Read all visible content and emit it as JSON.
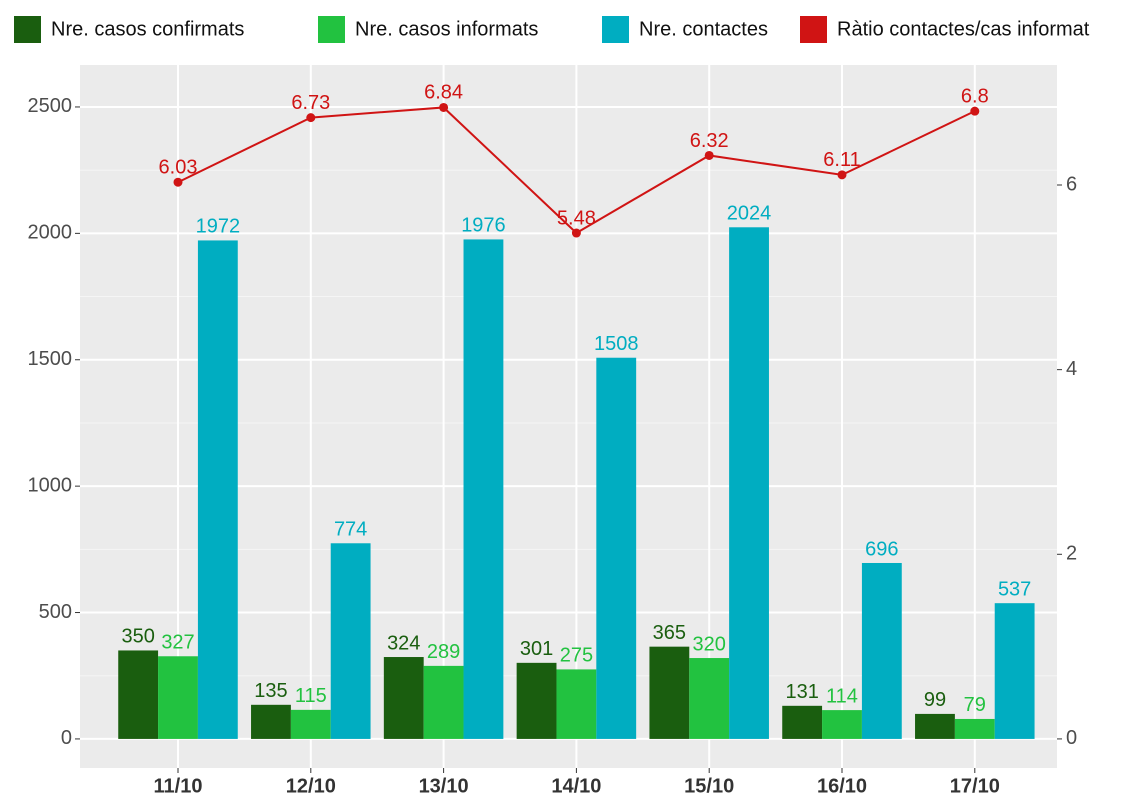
{
  "chart_data": {
    "type": "bar",
    "categories": [
      "11/10",
      "12/10",
      "13/10",
      "14/10",
      "15/10",
      "16/10",
      "17/10"
    ],
    "series": [
      {
        "name": "Nre. casos confirmats",
        "color": "#1a5e0f",
        "values": [
          350,
          135,
          324,
          301,
          365,
          131,
          99
        ]
      },
      {
        "name": "Nre. casos informats",
        "color": "#22c240",
        "values": [
          327,
          115,
          289,
          275,
          320,
          114,
          79
        ]
      },
      {
        "name": "Nre. contactes",
        "color": "#00adc1",
        "values": [
          1972,
          774,
          1976,
          1508,
          2024,
          696,
          537
        ]
      },
      {
        "name": "Ràtio contactes/cas informat",
        "color": "#d01414",
        "type": "line",
        "axis": "y2",
        "values": [
          6.03,
          6.73,
          6.84,
          5.48,
          6.32,
          6.11,
          6.8
        ]
      }
    ],
    "ylim": [
      -115,
      2666
    ],
    "yticks": [
      0,
      500,
      1000,
      1500,
      2000,
      2500
    ],
    "y2lim": [
      -0.315,
      7.3
    ],
    "y2ticks": [
      0,
      2,
      4,
      6
    ],
    "grid": true,
    "legend": "top"
  }
}
